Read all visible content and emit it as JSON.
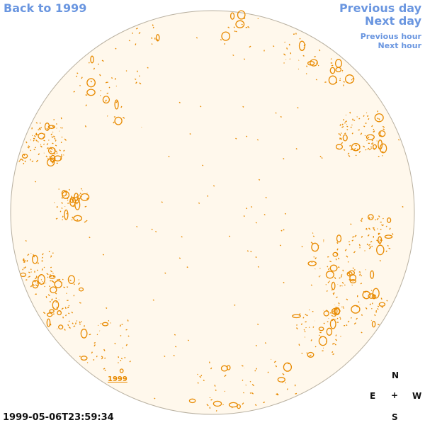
{
  "nav": {
    "back_label": "Back to 1999",
    "prev_day_label": "Previous day",
    "next_day_label": "Next day",
    "prev_hour_label": "Previous hour",
    "next_hour_label": "Next hour"
  },
  "disk": {
    "year_label": "1999",
    "fill_color": "#fff8ec",
    "border_color": "#b8b0a0",
    "contour_color": "#e88a00"
  },
  "timestamp": "1999-05-06T23:59:34",
  "compass": {
    "north": "N",
    "east": "E",
    "center": "+",
    "west": "W",
    "south": "S"
  }
}
